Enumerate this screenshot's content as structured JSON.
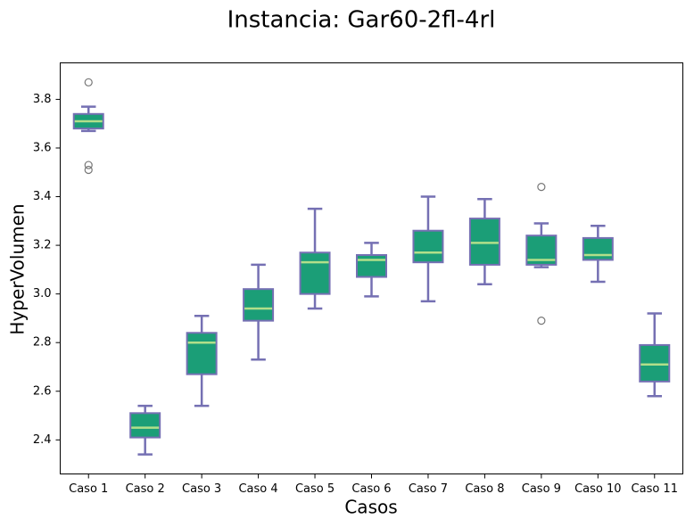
{
  "chart_data": {
    "type": "box",
    "title": "Instancia: Gar60-2fl-4rl",
    "x_label": "Casos",
    "y_label": "HyperVolumen",
    "categories": [
      "Caso 1",
      "Caso 2",
      "Caso 3",
      "Caso 4",
      "Caso 5",
      "Caso 6",
      "Caso 7",
      "Caso 8",
      "Caso 9",
      "Caso 10",
      "Caso 11"
    ],
    "min": [
      3.67,
      2.34,
      2.54,
      2.73,
      2.94,
      2.99,
      2.97,
      3.04,
      3.11,
      3.05,
      2.58
    ],
    "q1": [
      3.68,
      2.41,
      2.67,
      2.89,
      3.0,
      3.07,
      3.13,
      3.12,
      3.12,
      3.14,
      2.64
    ],
    "median": [
      3.71,
      2.45,
      2.8,
      2.94,
      3.13,
      3.14,
      3.17,
      3.21,
      3.14,
      3.16,
      2.71
    ],
    "q3": [
      3.74,
      2.51,
      2.84,
      3.02,
      3.17,
      3.16,
      3.26,
      3.31,
      3.24,
      3.23,
      2.79
    ],
    "max": [
      3.77,
      2.54,
      2.91,
      3.12,
      3.35,
      3.21,
      3.4,
      3.39,
      3.29,
      3.28,
      2.92
    ],
    "outliers": [
      [
        3.87,
        3.53,
        3.51
      ],
      [],
      [],
      [],
      [],
      [],
      [],
      [],
      [
        3.44,
        2.89
      ],
      [],
      []
    ],
    "box_color": "#1b9e77",
    "edge_color": "#7570b3",
    "median_color": "#b2df8a",
    "outlier_color": "#777777",
    "ylim": [
      2.26,
      3.95
    ],
    "yticks": [
      2.4,
      2.6,
      2.8,
      {
        "value": 3.0,
        "label": "3.0"
      },
      3.2,
      3.4,
      3.6,
      3.8
    ],
    "grid": false
  }
}
